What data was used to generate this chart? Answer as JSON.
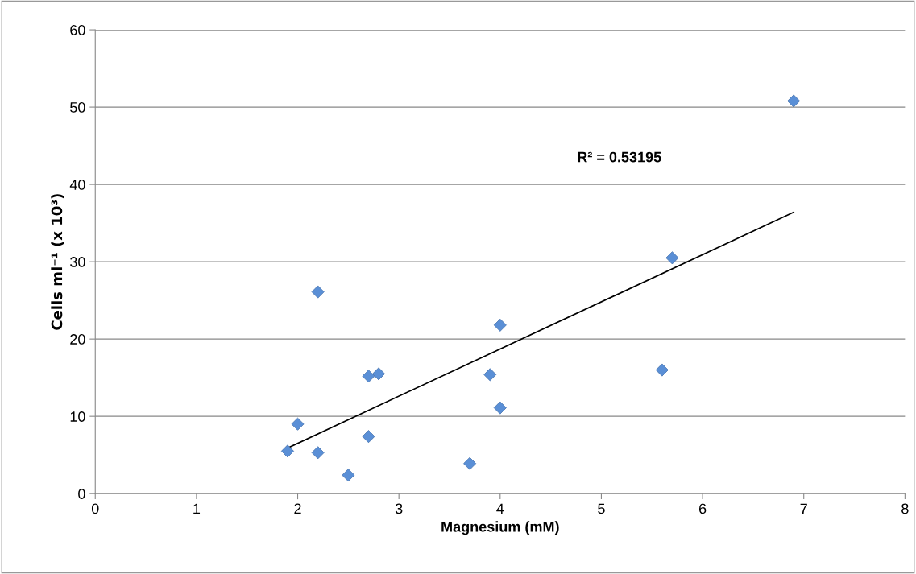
{
  "chart_data": {
    "type": "scatter",
    "xlabel": "Magnesium (mM)",
    "ylabel": "Cells ml⁻¹ (x 10³)",
    "xlim": [
      0,
      8
    ],
    "xticks": [
      0,
      1,
      2,
      3,
      4,
      5,
      6,
      7,
      8
    ],
    "ylim": [
      0,
      60
    ],
    "yticks": [
      0,
      10,
      20,
      30,
      40,
      50,
      60
    ],
    "grid": "y",
    "legend": false,
    "marker": "diamond",
    "annotations": [
      "R² = 0.53195"
    ],
    "series": [
      {
        "color": "#5a8fd6",
        "x": [
          1.9,
          2.0,
          2.2,
          2.2,
          2.5,
          2.7,
          2.7,
          2.8,
          3.7,
          3.9,
          4.0,
          4.0,
          5.6,
          5.7,
          6.9
        ],
        "values": [
          5.5,
          9.0,
          26.1,
          5.3,
          2.4,
          15.2,
          7.4,
          15.5,
          3.9,
          15.4,
          21.8,
          11.1,
          16.0,
          30.5,
          50.8
        ]
      },
      {
        "type": "line",
        "marker": "none",
        "color": "#000000",
        "x": [
          1.9,
          6.9
        ],
        "values": [
          5.9,
          36.4
        ]
      }
    ]
  }
}
